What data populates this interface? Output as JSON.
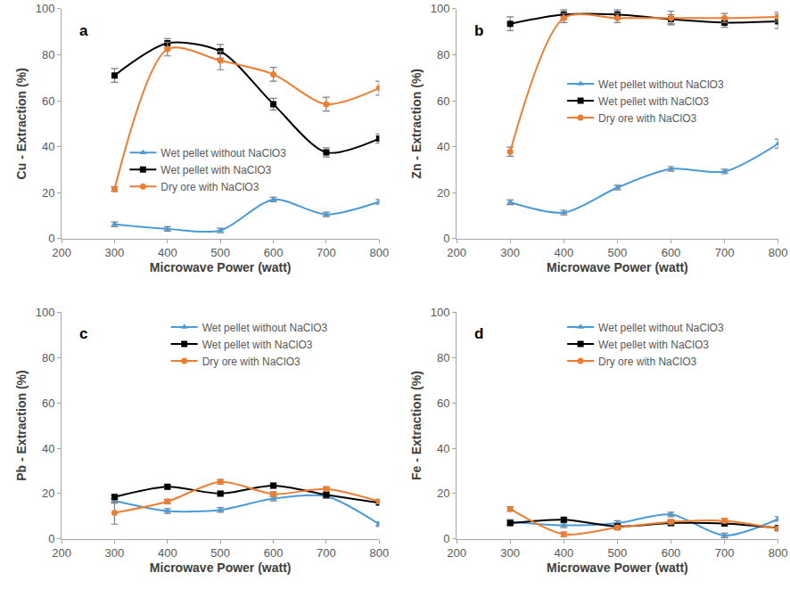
{
  "chart_data": [
    {
      "type": "line",
      "label": "a",
      "x_label": "Microwave Power (watt)",
      "y_label": "Cu - Extraction (%)",
      "x": [
        300,
        400,
        500,
        600,
        700,
        800
      ],
      "xlim": [
        200,
        800
      ],
      "xticks": [
        200,
        300,
        400,
        500,
        600,
        700,
        800
      ],
      "ylim": [
        0,
        100
      ],
      "yticks": [
        0,
        20,
        40,
        60,
        80,
        100
      ],
      "grid": false,
      "legend": "lower left",
      "line_style": "smooth",
      "series": [
        {
          "name": "Wet pellet without NaClO3",
          "color": "#4a9ad8",
          "marker": "triangle",
          "values": [
            6.2,
            4.2,
            3.5,
            17,
            10.5,
            16
          ],
          "errors": [
            1,
            1,
            1,
            1,
            1,
            1
          ]
        },
        {
          "name": "Wet pellet with NaClO3",
          "color": "#000000",
          "marker": "square",
          "values": [
            71,
            85,
            81.5,
            58.5,
            37.5,
            43.5
          ],
          "errors": [
            3,
            2,
            3,
            2.5,
            2,
            2
          ]
        },
        {
          "name": "Dry ore with NaClO3",
          "color": "#ed7d31",
          "marker": "circle",
          "values": [
            21.5,
            82.5,
            77.5,
            71.5,
            58.5,
            65.5
          ],
          "errors": [
            1,
            3,
            4,
            3,
            3,
            3
          ]
        }
      ]
    },
    {
      "type": "line",
      "label": "b",
      "x_label": "Microwave Power (watt)",
      "y_label": "Zn - Extraction (%)",
      "x": [
        300,
        400,
        500,
        600,
        700,
        800
      ],
      "xlim": [
        200,
        800
      ],
      "xticks": [
        200,
        300,
        400,
        500,
        600,
        700,
        800
      ],
      "ylim": [
        0,
        100
      ],
      "yticks": [
        0,
        20,
        40,
        60,
        80,
        100
      ],
      "grid": false,
      "legend": "center right",
      "line_style": "smooth",
      "series": [
        {
          "name": "Wet pellet without NaClO3",
          "color": "#4a9ad8",
          "marker": "triangle",
          "values": [
            15.8,
            11.3,
            22.2,
            30.3,
            29.2,
            41.3
          ],
          "errors": [
            1,
            1,
            1,
            1,
            1,
            2
          ]
        },
        {
          "name": "Wet pellet with NaClO3",
          "color": "#000000",
          "marker": "square",
          "values": [
            93.5,
            97.5,
            97.5,
            95.5,
            94,
            94.5
          ],
          "errors": [
            3,
            2,
            2,
            2,
            2,
            3
          ]
        },
        {
          "name": "Dry ore with NaClO3",
          "color": "#ed7d31",
          "marker": "circle",
          "values": [
            37.8,
            96,
            96,
            96,
            96,
            96.5
          ],
          "errors": [
            2,
            2,
            2,
            3,
            2,
            2
          ]
        }
      ]
    },
    {
      "type": "line",
      "label": "c",
      "x_label": "Microwave Power (watt)",
      "y_label": "Pb - Extraction (%)",
      "x": [
        300,
        400,
        500,
        600,
        700,
        800
      ],
      "xlim": [
        200,
        800
      ],
      "xticks": [
        200,
        300,
        400,
        500,
        600,
        700,
        800
      ],
      "ylim": [
        0,
        100
      ],
      "yticks": [
        0,
        20,
        40,
        60,
        80,
        100
      ],
      "grid": false,
      "legend": "upper right",
      "line_style": "smooth",
      "series": [
        {
          "name": "Wet pellet without NaClO3",
          "color": "#4a9ad8",
          "marker": "triangle",
          "values": [
            16.8,
            12.3,
            12.8,
            17.8,
            18.8,
            6.5
          ],
          "errors": [
            1,
            1,
            1,
            1,
            1,
            1
          ]
        },
        {
          "name": "Wet pellet with NaClO3",
          "color": "#000000",
          "marker": "square",
          "values": [
            18.5,
            23,
            20,
            23.5,
            19.5,
            16
          ],
          "errors": [
            1,
            1,
            1,
            1,
            1,
            1
          ]
        },
        {
          "name": "Dry ore with NaClO3",
          "color": "#ed7d31",
          "marker": "circle",
          "values": [
            11.5,
            16.5,
            25.2,
            19.8,
            22,
            16.5
          ],
          "errors": [
            5,
            1,
            1,
            1,
            1,
            1
          ]
        }
      ]
    },
    {
      "type": "line",
      "label": "d",
      "x_label": "Microwave Power (watt)",
      "y_label": "Fe - Extraction (%)",
      "x": [
        300,
        400,
        500,
        600,
        700,
        800
      ],
      "xlim": [
        200,
        800
      ],
      "xticks": [
        200,
        300,
        400,
        500,
        600,
        700,
        800
      ],
      "ylim": [
        0,
        100
      ],
      "yticks": [
        0,
        20,
        40,
        60,
        80,
        100
      ],
      "grid": false,
      "legend": "upper right",
      "line_style": "smooth",
      "series": [
        {
          "name": "Wet pellet without NaClO3",
          "color": "#4a9ad8",
          "marker": "triangle",
          "values": [
            7.5,
            6,
            7,
            10.8,
            1.5,
            8.8
          ],
          "errors": [
            1,
            1,
            1,
            1,
            1,
            1
          ]
        },
        {
          "name": "Wet pellet with NaClO3",
          "color": "#000000",
          "marker": "square",
          "values": [
            7,
            8.5,
            5.5,
            7,
            6.8,
            4.8
          ],
          "errors": [
            1,
            1,
            1,
            1,
            1,
            1
          ]
        },
        {
          "name": "Dry ore with NaClO3",
          "color": "#ed7d31",
          "marker": "circle",
          "values": [
            13.2,
            2,
            5,
            7.5,
            8,
            4.5
          ],
          "errors": [
            1,
            1,
            1,
            1,
            1,
            1
          ]
        }
      ]
    }
  ]
}
